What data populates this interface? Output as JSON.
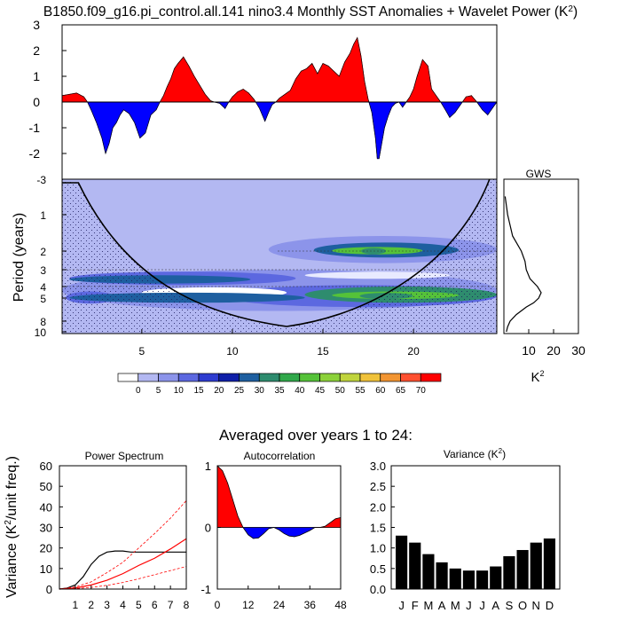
{
  "section_title": "Averaged over years 1 to 24:",
  "colors": {
    "positive": "#ff0000",
    "negative": "#0000ff",
    "cone_stipple": "#1a1a5a"
  },
  "chart_data": [
    {
      "type": "area",
      "title": "B1850.f09_g16.pi_control.all.141 nino3.4 Monthly SST Anomalies + Wavelet Power (K",
      "title_sup": "2",
      "title_end": ")",
      "ylim": [
        -3,
        3
      ],
      "yticks": [
        -3,
        -2,
        -1,
        0,
        1,
        2,
        3
      ],
      "xlim": [
        0.6,
        24.6
      ],
      "series": [
        {
          "x": [
            0.6,
            1.0,
            1.4,
            1.8,
            2.0,
            2.2,
            2.5,
            2.8,
            3.0,
            3.2,
            3.4,
            3.6,
            3.8,
            4.0,
            4.3,
            4.6,
            4.9,
            5.2,
            5.5,
            5.8,
            6.0,
            6.2,
            6.4,
            6.6,
            6.8,
            7.0,
            7.3,
            7.6,
            7.9,
            8.2,
            8.5,
            8.8,
            9.0,
            9.3,
            9.6,
            9.8,
            10.0,
            10.3,
            10.6,
            10.9,
            11.2,
            11.5,
            11.8,
            12.0,
            12.2,
            12.4,
            12.6,
            12.9,
            13.2,
            13.5,
            13.8,
            14.1,
            14.4,
            14.7,
            15.0,
            15.3,
            15.6,
            15.9,
            16.2,
            16.5,
            16.7,
            16.9,
            17.1,
            17.3,
            17.5,
            17.7,
            17.9,
            18.0,
            18.1,
            18.2,
            18.4,
            18.6,
            18.8,
            19.0,
            19.2,
            19.4,
            19.6,
            19.8,
            20.0,
            20.2,
            20.5,
            20.8,
            21.0,
            21.2,
            21.5,
            21.8,
            22.0,
            22.3,
            22.6,
            22.9,
            23.2,
            23.5,
            23.8,
            24.1,
            24.3,
            24.6
          ],
          "y": [
            0.25,
            0.3,
            0.35,
            0.2,
            0.0,
            -0.3,
            -0.8,
            -1.4,
            -2.0,
            -1.6,
            -1.0,
            -0.8,
            -0.5,
            -0.3,
            -0.45,
            -0.8,
            -1.4,
            -1.2,
            -0.5,
            -0.3,
            0.0,
            0.25,
            0.6,
            0.9,
            1.3,
            1.5,
            1.75,
            1.4,
            1.0,
            0.65,
            0.3,
            0.05,
            0.0,
            -0.05,
            -0.25,
            0.0,
            0.2,
            0.4,
            0.5,
            0.35,
            0.1,
            -0.25,
            -0.75,
            -0.4,
            -0.1,
            0.0,
            0.15,
            0.3,
            0.45,
            0.9,
            1.2,
            1.3,
            1.5,
            1.1,
            1.5,
            1.4,
            1.2,
            1.0,
            1.55,
            1.9,
            2.25,
            2.5,
            1.8,
            0.8,
            0.1,
            -0.4,
            -1.4,
            -2.2,
            -2.2,
            -1.8,
            -1.0,
            -0.55,
            -0.2,
            -0.05,
            0.0,
            -0.2,
            0.0,
            0.2,
            0.5,
            1.0,
            1.65,
            1.4,
            0.5,
            0.3,
            0.0,
            -0.35,
            -0.6,
            -0.4,
            -0.1,
            0.2,
            0.25,
            0.0,
            -0.3,
            -0.5,
            -0.3,
            0.0
          ]
        }
      ]
    },
    {
      "type": "heatmap",
      "ylabel": "Period (years)",
      "yticks": [
        "-3",
        "1",
        "2",
        "3",
        "4",
        "5",
        "8",
        "10"
      ],
      "xticks": [
        5,
        10,
        15,
        20
      ],
      "xlim": [
        0.6,
        24.6
      ],
      "contour_levels": [
        0,
        5,
        10,
        15,
        20,
        25,
        30,
        35,
        40,
        45,
        50,
        55,
        60,
        65,
        70
      ],
      "contour_colors": [
        "#ffffff",
        "#b3b8f2",
        "#8c94ea",
        "#5c68e0",
        "#2e3cd0",
        "#0f1fa8",
        "#1e5fa0",
        "#2e8c6e",
        "#30a84a",
        "#55c239",
        "#8cd23a",
        "#c0d43d",
        "#f0c23a",
        "#f29532",
        "#ff5030",
        "#ff0000"
      ],
      "blobs": [
        {
          "x": [
            14.5,
            22.5
          ],
          "period": [
            1.7,
            2.3
          ],
          "power": 20
        },
        {
          "x": [
            15.5,
            20.5
          ],
          "period": [
            1.85,
            2.15
          ],
          "power": 35
        },
        {
          "x": [
            1.0,
            11.0
          ],
          "period": [
            3.3,
            3.8
          ],
          "power": 20
        },
        {
          "x": [
            1.0,
            14.0
          ],
          "period": [
            4.5,
            5.5
          ],
          "power": 20
        },
        {
          "x": [
            14.0,
            24.6
          ],
          "period": [
            4.0,
            5.5
          ],
          "power": 25
        },
        {
          "x": [
            15.5,
            22.5
          ],
          "period": [
            4.4,
            5.1
          ],
          "power": 35
        }
      ]
    },
    {
      "type": "line",
      "title": "GWS",
      "xlabel": "K",
      "xlabel_sup": "2",
      "xticks": [
        10,
        20,
        30
      ],
      "xlim": [
        0,
        30
      ],
      "period": [
        0.7,
        1.0,
        1.5,
        2.0,
        2.5,
        3.0,
        3.5,
        4.0,
        4.5,
        5.0,
        5.5,
        6.0,
        7.0,
        8.0,
        9.0,
        10.0
      ],
      "power": [
        0.5,
        1.5,
        3.5,
        7.0,
        8.5,
        9.0,
        10.5,
        13.5,
        15.0,
        14.0,
        12.0,
        9.0,
        5.0,
        2.5,
        1.5,
        1.0
      ]
    },
    {
      "type": "line",
      "title": "Power Spectrum",
      "ylabel_a": "Variance (K",
      "ylabel_sup": "2",
      "ylabel_b": "/unit freq.)",
      "ylim": [
        0,
        60
      ],
      "xlim": [
        0,
        8
      ],
      "yticks": [
        0,
        10,
        20,
        30,
        40,
        50,
        60
      ],
      "xticks": [
        1,
        2,
        3,
        4,
        5,
        6,
        7,
        8
      ],
      "series": [
        {
          "style": "solid-black",
          "x": [
            0.0,
            0.5,
            1.0,
            1.5,
            2.0,
            2.5,
            3.0,
            3.5,
            4.0,
            4.5,
            5.0,
            6.0,
            7.0,
            8.0
          ],
          "y": [
            0.0,
            0.5,
            2.0,
            6.0,
            12.0,
            16.0,
            18.0,
            18.5,
            18.5,
            18.0,
            18.0,
            18.0,
            18.0,
            18.0
          ]
        },
        {
          "style": "solid-red",
          "x": [
            0.0,
            1.0,
            2.0,
            3.0,
            4.0,
            5.0,
            6.0,
            7.0,
            8.0
          ],
          "y": [
            0.0,
            0.5,
            2.0,
            4.3,
            7.5,
            11.5,
            15.0,
            19.5,
            24.5
          ]
        },
        {
          "style": "dashed-red",
          "x": [
            0.0,
            1.0,
            2.0,
            3.0,
            4.0,
            5.0,
            6.0,
            7.0,
            8.0
          ],
          "y": [
            0.0,
            1.0,
            3.5,
            8.0,
            13.0,
            20.0,
            27.0,
            34.5,
            43.0
          ]
        },
        {
          "style": "dashed-red",
          "x": [
            0.0,
            1.0,
            2.0,
            3.0,
            4.0,
            5.0,
            6.0,
            7.0,
            8.0
          ],
          "y": [
            0.0,
            0.2,
            0.8,
            1.8,
            3.2,
            5.0,
            7.0,
            9.0,
            11.0
          ]
        }
      ]
    },
    {
      "type": "area",
      "title": "Autocorrelation",
      "ylim": [
        -1,
        1
      ],
      "xlim": [
        0,
        48
      ],
      "yticks": [
        -1,
        0,
        1
      ],
      "xticks": [
        0,
        12,
        24,
        36,
        48
      ],
      "x": [
        0,
        2,
        4,
        6,
        8,
        10,
        12,
        14,
        16,
        18,
        20,
        22,
        24,
        26,
        28,
        30,
        32,
        34,
        36,
        38,
        40,
        42,
        44,
        46,
        48
      ],
      "y": [
        1.0,
        0.92,
        0.72,
        0.45,
        0.18,
        0.0,
        -0.12,
        -0.18,
        -0.17,
        -0.1,
        -0.02,
        0.0,
        -0.04,
        -0.1,
        -0.14,
        -0.15,
        -0.13,
        -0.09,
        -0.05,
        0.0,
        0.0,
        0.02,
        0.08,
        0.14,
        0.16
      ]
    },
    {
      "type": "bar",
      "title": "Variance (K",
      "title_sup": "2",
      "title_end": ")",
      "ylim": [
        0,
        3
      ],
      "yticks": [
        "0.0",
        "0.5",
        "1.0",
        "1.5",
        "2.0",
        "2.5",
        "3.0"
      ],
      "categories": [
        "J",
        "F",
        "M",
        "A",
        "M",
        "J",
        "J",
        "A",
        "S",
        "O",
        "N",
        "D"
      ],
      "values": [
        1.3,
        1.13,
        0.85,
        0.65,
        0.5,
        0.45,
        0.45,
        0.55,
        0.8,
        0.95,
        1.13,
        1.23
      ]
    }
  ]
}
